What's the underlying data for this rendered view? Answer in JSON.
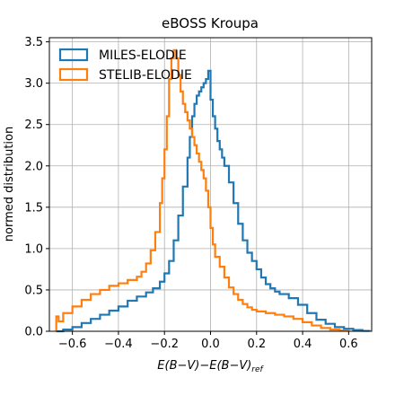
{
  "chart_data": {
    "type": "histogram-step",
    "title": "eBOSS Kroupa",
    "xlabel": "E(B−V)−E(B−V)",
    "xlabel_sub": "ref",
    "ylabel": "normed distribution",
    "xlim": [
      -0.7,
      0.7
    ],
    "ylim": [
      0,
      3.55
    ],
    "xticks": [
      -0.6,
      -0.4,
      -0.2,
      0.0,
      0.2,
      0.4,
      0.6
    ],
    "xtick_labels": [
      "−0.6",
      "−0.4",
      "−0.2",
      "0.0",
      "0.2",
      "0.4",
      "0.6"
    ],
    "yticks": [
      0.0,
      0.5,
      1.0,
      1.5,
      2.0,
      2.5,
      3.0,
      3.5
    ],
    "ytick_labels": [
      "0.0",
      "0.5",
      "1.0",
      "1.5",
      "2.0",
      "2.5",
      "3.0",
      "3.5"
    ],
    "grid": true,
    "legend_position": "upper-left",
    "series": [
      {
        "name": "MILES-ELODIE",
        "color": "#1f77b4",
        "x": [
          -0.67,
          -0.64,
          -0.6,
          -0.56,
          -0.52,
          -0.48,
          -0.44,
          -0.4,
          -0.36,
          -0.32,
          -0.28,
          -0.25,
          -0.22,
          -0.2,
          -0.18,
          -0.16,
          -0.14,
          -0.12,
          -0.1,
          -0.09,
          -0.08,
          -0.07,
          -0.06,
          -0.05,
          -0.04,
          -0.03,
          -0.02,
          -0.01,
          0.0,
          0.01,
          0.02,
          0.03,
          0.04,
          0.05,
          0.06,
          0.08,
          0.1,
          0.12,
          0.14,
          0.16,
          0.18,
          0.2,
          0.22,
          0.24,
          0.26,
          0.28,
          0.3,
          0.34,
          0.38,
          0.42,
          0.46,
          0.5,
          0.54,
          0.58,
          0.62,
          0.66,
          0.69
        ],
        "y": [
          0.0,
          0.02,
          0.05,
          0.1,
          0.15,
          0.2,
          0.25,
          0.3,
          0.37,
          0.42,
          0.47,
          0.52,
          0.6,
          0.7,
          0.85,
          1.1,
          1.4,
          1.75,
          2.1,
          2.35,
          2.6,
          2.75,
          2.85,
          2.9,
          2.95,
          3.0,
          3.05,
          3.15,
          2.8,
          2.6,
          2.45,
          2.3,
          2.2,
          2.1,
          2.0,
          1.8,
          1.55,
          1.3,
          1.1,
          0.95,
          0.85,
          0.75,
          0.65,
          0.57,
          0.52,
          0.48,
          0.45,
          0.4,
          0.32,
          0.22,
          0.14,
          0.09,
          0.05,
          0.03,
          0.015,
          0.005,
          0.0
        ]
      },
      {
        "name": "STELIB-ELODIE",
        "color": "#ff7f0e",
        "x": [
          -0.67,
          -0.66,
          -0.64,
          -0.6,
          -0.56,
          -0.52,
          -0.48,
          -0.44,
          -0.4,
          -0.36,
          -0.32,
          -0.3,
          -0.28,
          -0.26,
          -0.24,
          -0.22,
          -0.21,
          -0.2,
          -0.19,
          -0.18,
          -0.17,
          -0.16,
          -0.15,
          -0.14,
          -0.13,
          -0.12,
          -0.11,
          -0.1,
          -0.09,
          -0.08,
          -0.07,
          -0.06,
          -0.05,
          -0.04,
          -0.03,
          -0.02,
          -0.01,
          0.0,
          0.01,
          0.02,
          0.04,
          0.06,
          0.08,
          0.1,
          0.12,
          0.14,
          0.16,
          0.18,
          0.2,
          0.24,
          0.28,
          0.32,
          0.36,
          0.4,
          0.44,
          0.48,
          0.52,
          0.56,
          0.6
        ],
        "y": [
          0.18,
          0.12,
          0.22,
          0.3,
          0.38,
          0.45,
          0.5,
          0.55,
          0.58,
          0.62,
          0.66,
          0.72,
          0.82,
          0.98,
          1.2,
          1.55,
          1.85,
          2.2,
          2.6,
          3.05,
          3.3,
          3.4,
          3.3,
          3.1,
          2.9,
          2.75,
          2.65,
          2.55,
          2.45,
          2.35,
          2.25,
          2.15,
          2.05,
          1.95,
          1.85,
          1.7,
          1.5,
          1.25,
          1.05,
          0.9,
          0.78,
          0.65,
          0.53,
          0.45,
          0.38,
          0.33,
          0.29,
          0.26,
          0.24,
          0.22,
          0.2,
          0.18,
          0.15,
          0.11,
          0.07,
          0.04,
          0.02,
          0.01,
          0.0
        ]
      }
    ]
  }
}
